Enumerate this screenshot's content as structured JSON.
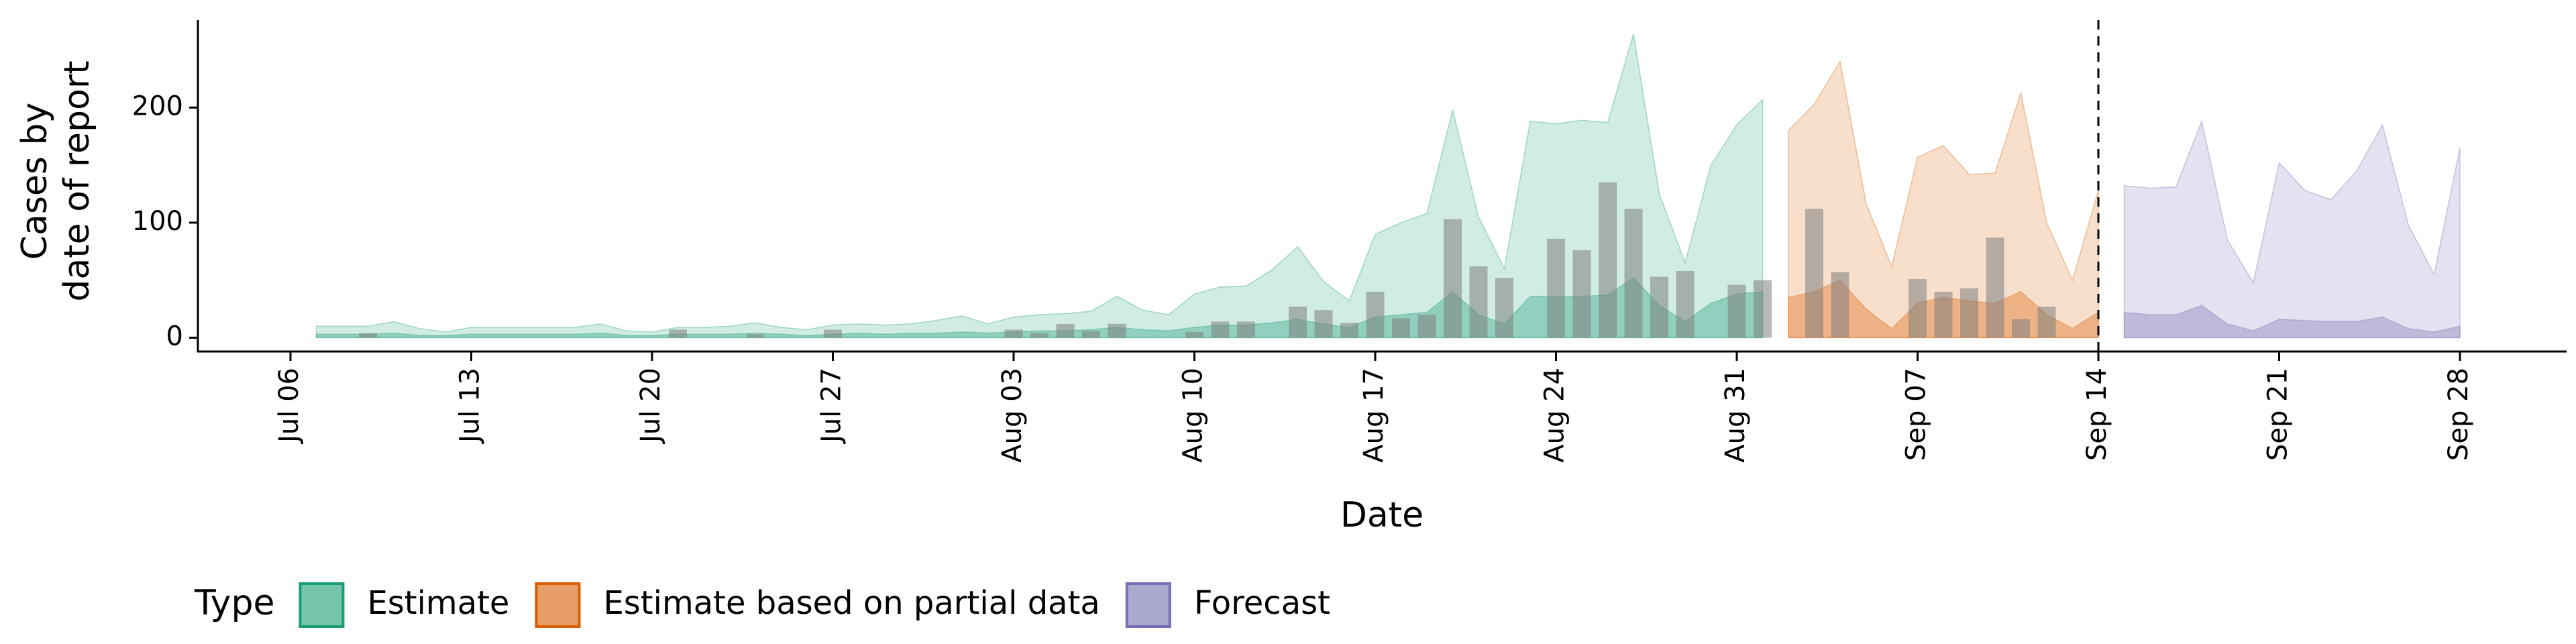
{
  "chart_data": {
    "type": "area",
    "x_label": "Date",
    "y_label": [
      "Cases by",
      "date of report"
    ],
    "legend_title": "Type",
    "categories": [
      "Jul 06",
      null,
      null,
      null,
      null,
      null,
      null,
      "Jul 13",
      null,
      null,
      null,
      null,
      null,
      null,
      "Jul 20",
      null,
      null,
      null,
      null,
      null,
      null,
      "Jul 27",
      null,
      null,
      null,
      null,
      null,
      null,
      "Aug 03",
      null,
      null,
      null,
      null,
      null,
      null,
      "Aug 10",
      null,
      null,
      null,
      null,
      null,
      null,
      "Aug 17",
      null,
      null,
      null,
      null,
      null,
      null,
      "Aug 24",
      null,
      null,
      null,
      null,
      null,
      null,
      "Aug 31",
      null,
      null,
      null,
      null,
      null,
      null,
      "Sep 07",
      null,
      null,
      null,
      null,
      null,
      null,
      "Sep 14",
      null,
      null,
      null,
      null,
      null,
      null,
      "Sep 21",
      null,
      null,
      null,
      null,
      null,
      null,
      "Sep 28"
    ],
    "ylim": [
      -12,
      276
    ],
    "yticks": [
      0,
      100,
      200
    ],
    "forecast_line": "Sep 14",
    "bars": {
      "color": "#808080",
      "values": [
        0,
        0,
        0,
        4,
        0,
        0,
        0,
        0,
        0,
        0,
        0,
        0,
        0,
        0,
        0,
        7,
        0,
        0,
        3,
        0,
        0,
        7,
        0,
        0,
        0,
        0,
        0,
        0,
        7,
        4,
        12,
        6,
        12,
        0,
        0,
        5,
        14,
        14,
        0,
        27,
        24,
        13,
        40,
        17,
        20,
        103,
        62,
        52,
        0,
        86,
        76,
        135,
        112,
        53,
        58,
        0,
        46,
        50,
        0,
        112,
        57,
        0,
        0,
        51,
        40,
        43,
        87,
        16,
        27,
        0,
        0,
        0,
        0,
        0,
        0,
        0,
        0,
        0,
        0,
        0,
        0,
        0,
        0,
        0,
        0
      ]
    },
    "series": [
      {
        "name": "Estimate",
        "color": "#1b9e77",
        "outer": [
          null,
          10,
          10,
          10,
          14,
          8,
          5,
          9,
          9,
          9,
          9,
          9,
          12,
          6,
          5,
          9,
          9,
          10,
          13,
          9,
          7,
          11,
          12,
          11,
          12,
          15,
          19,
          12,
          18,
          20,
          21,
          23,
          36,
          24,
          20,
          38,
          44,
          45,
          59,
          79,
          49,
          32,
          90,
          100,
          108,
          198,
          105,
          60,
          188,
          186,
          189,
          187,
          264,
          125,
          65,
          150,
          185,
          207,
          null,
          null,
          null,
          null,
          null,
          null,
          null,
          null,
          null,
          null,
          null,
          null,
          null,
          null,
          null,
          null,
          null,
          null,
          null,
          null,
          null,
          null,
          null,
          null,
          null,
          null,
          null
        ],
        "inner": [
          null,
          3,
          3,
          3,
          4,
          2,
          2,
          3,
          3,
          3,
          3,
          3,
          4,
          2,
          2,
          3,
          3,
          3,
          4,
          3,
          2,
          3,
          4,
          3,
          4,
          4,
          5,
          4,
          5,
          6,
          6,
          7,
          9,
          7,
          6,
          9,
          11,
          11,
          13,
          16,
          12,
          9,
          18,
          20,
          22,
          40,
          20,
          12,
          36,
          36,
          36,
          37,
          52,
          28,
          14,
          30,
          38,
          40,
          null,
          null,
          null,
          null,
          null,
          null,
          null,
          null,
          null,
          null,
          null,
          null,
          null,
          null,
          null,
          null,
          null,
          null,
          null,
          null,
          null,
          null,
          null,
          null,
          null,
          null,
          null
        ]
      },
      {
        "name": "Estimate based on partial data",
        "color": "#d95f02",
        "outer": [
          null,
          null,
          null,
          null,
          null,
          null,
          null,
          null,
          null,
          null,
          null,
          null,
          null,
          null,
          null,
          null,
          null,
          null,
          null,
          null,
          null,
          null,
          null,
          null,
          null,
          null,
          null,
          null,
          null,
          null,
          null,
          null,
          null,
          null,
          null,
          null,
          null,
          null,
          null,
          null,
          null,
          null,
          null,
          null,
          null,
          null,
          null,
          null,
          null,
          null,
          null,
          null,
          null,
          null,
          null,
          null,
          null,
          null,
          180,
          203,
          240,
          117,
          62,
          157,
          167,
          142,
          143,
          213,
          100,
          50,
          128,
          null,
          null,
          null,
          null,
          null,
          null,
          null,
          null,
          null,
          null,
          null,
          null,
          null,
          null
        ],
        "inner": [
          null,
          null,
          null,
          null,
          null,
          null,
          null,
          null,
          null,
          null,
          null,
          null,
          null,
          null,
          null,
          null,
          null,
          null,
          null,
          null,
          null,
          null,
          null,
          null,
          null,
          null,
          null,
          null,
          null,
          null,
          null,
          null,
          null,
          null,
          null,
          null,
          null,
          null,
          null,
          null,
          null,
          null,
          null,
          null,
          null,
          null,
          null,
          null,
          null,
          null,
          null,
          null,
          null,
          null,
          null,
          null,
          null,
          null,
          35,
          40,
          50,
          25,
          8,
          30,
          35,
          32,
          30,
          40,
          20,
          8,
          22,
          null,
          null,
          null,
          null,
          null,
          null,
          null,
          null,
          null,
          null,
          null,
          null,
          null,
          null
        ]
      },
      {
        "name": "Forecast",
        "color": "#7570b3",
        "outer": [
          null,
          null,
          null,
          null,
          null,
          null,
          null,
          null,
          null,
          null,
          null,
          null,
          null,
          null,
          null,
          null,
          null,
          null,
          null,
          null,
          null,
          null,
          null,
          null,
          null,
          null,
          null,
          null,
          null,
          null,
          null,
          null,
          null,
          null,
          null,
          null,
          null,
          null,
          null,
          null,
          null,
          null,
          null,
          null,
          null,
          null,
          null,
          null,
          null,
          null,
          null,
          null,
          null,
          null,
          null,
          null,
          null,
          null,
          null,
          null,
          null,
          null,
          null,
          null,
          null,
          null,
          null,
          null,
          null,
          null,
          null,
          132,
          130,
          131,
          188,
          85,
          48,
          152,
          128,
          120,
          145,
          185,
          98,
          55,
          165
        ],
        "inner": [
          null,
          null,
          null,
          null,
          null,
          null,
          null,
          null,
          null,
          null,
          null,
          null,
          null,
          null,
          null,
          null,
          null,
          null,
          null,
          null,
          null,
          null,
          null,
          null,
          null,
          null,
          null,
          null,
          null,
          null,
          null,
          null,
          null,
          null,
          null,
          null,
          null,
          null,
          null,
          null,
          null,
          null,
          null,
          null,
          null,
          null,
          null,
          null,
          null,
          null,
          null,
          null,
          null,
          null,
          null,
          null,
          null,
          null,
          null,
          null,
          null,
          null,
          null,
          null,
          null,
          null,
          null,
          null,
          null,
          null,
          null,
          22,
          20,
          20,
          28,
          12,
          6,
          16,
          15,
          14,
          14,
          18,
          8,
          5,
          10
        ]
      }
    ]
  }
}
